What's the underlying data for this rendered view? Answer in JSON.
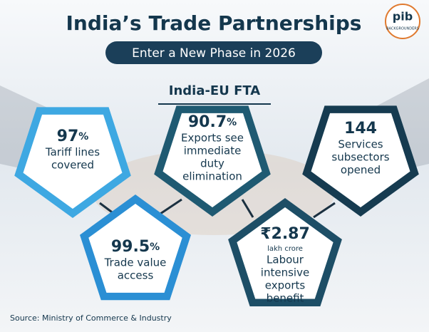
{
  "header": {
    "title": "India’s Trade Partnerships",
    "subtitle": "Enter a New Phase in 2026"
  },
  "logo": {
    "text": "pib",
    "caption": "BACKGROUNDERS"
  },
  "section_title": "India-EU FTA",
  "stats": [
    {
      "value": "97",
      "unit": "%",
      "label": [
        "Tariff lines",
        "covered"
      ]
    },
    {
      "value": "99.5",
      "unit": "%",
      "label": [
        "Trade value",
        "access"
      ]
    },
    {
      "value": "90.7",
      "unit": "%",
      "label": [
        "Exports see",
        "immediate",
        "duty",
        "elimination"
      ]
    },
    {
      "value": "₹2.87",
      "note": "lakh crore",
      "label": [
        "Labour",
        "intensive",
        "exports",
        "benefit"
      ]
    },
    {
      "value": "144",
      "label": [
        "Services",
        "subsectors",
        "opened"
      ]
    }
  ],
  "source": "Source: Ministry of Commerce & Industry"
}
